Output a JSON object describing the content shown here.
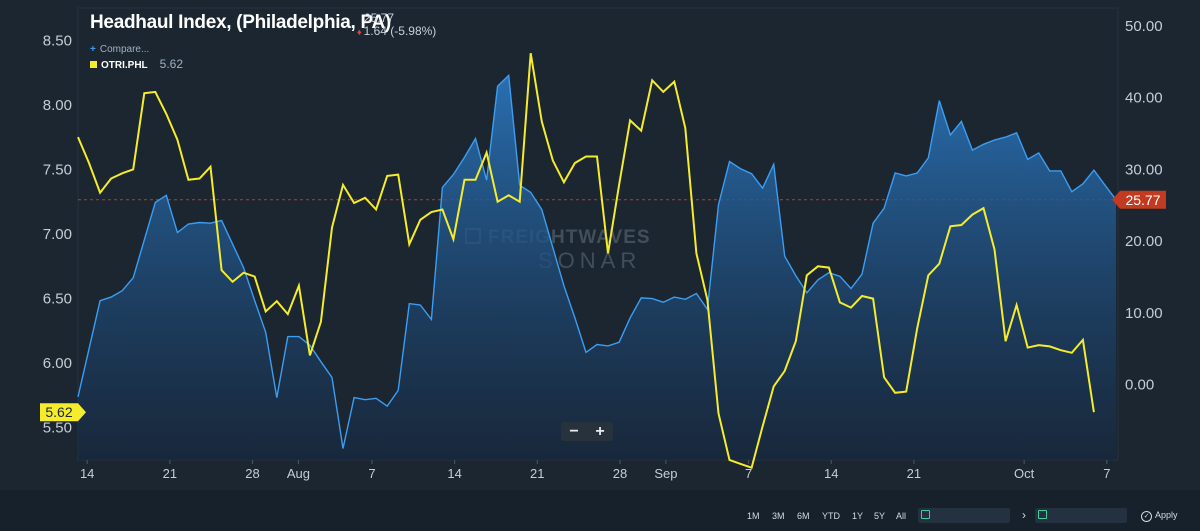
{
  "header": {
    "title": "Headhaul Index, (Philadelphia, PA)",
    "last_value": "25.77",
    "change": "1.64 (-5.98%)",
    "compare_label": "Compare...",
    "legend_series": "OTRI.PHL",
    "legend_value": "5.62"
  },
  "watermark": {
    "line1": "FREIGHTWAVES",
    "line2": "SONAR"
  },
  "zoom": {
    "minus": "−",
    "plus": "+"
  },
  "footer": {
    "ranges": [
      "1M",
      "3M",
      "6M",
      "YTD",
      "1Y",
      "5Y",
      "All"
    ],
    "separator": "›",
    "apply_label": "Apply"
  },
  "colors": {
    "background": "#1b2631",
    "headhaul_line": "#3c9df2",
    "otri_line": "#f5ec2b",
    "last_value_badge": "#c23a1f"
  },
  "chart_data": {
    "type": "line",
    "title": "Headhaul Index, (Philadelphia, PA)",
    "x_tick_labels": [
      "14",
      "21",
      "28",
      "Aug",
      "7",
      "14",
      "21",
      "28",
      "Sep",
      "7",
      "14",
      "21",
      "Oct",
      "7"
    ],
    "y_left": {
      "ticks": [
        "8.50",
        "8.00",
        "7.50",
        "7.00",
        "6.50",
        "6.00",
        "5.50"
      ],
      "range": [
        5.25,
        8.75
      ]
    },
    "y_right": {
      "ticks": [
        "50.00",
        "40.00",
        "30.00",
        "20.00",
        "10.00",
        "0.00"
      ],
      "range": [
        -10.5,
        52.5
      ]
    },
    "grid": false,
    "series": [
      {
        "name": "Headhaul Index, (Philadelphia, PA)",
        "axis": "right",
        "type": "area",
        "last_label": "25.77",
        "points": [
          [
            0,
            -1.7
          ],
          [
            2,
            11.7
          ],
          [
            3,
            12.2
          ],
          [
            4,
            13.1
          ],
          [
            5,
            14.9
          ],
          [
            7,
            25.4
          ],
          [
            8,
            26.4
          ],
          [
            9,
            21.2
          ],
          [
            10,
            22.4
          ],
          [
            11,
            22.6
          ],
          [
            12,
            22.5
          ],
          [
            13,
            22.9
          ],
          [
            15,
            16.3
          ],
          [
            16,
            11.7
          ],
          [
            17,
            7.3
          ],
          [
            18,
            -1.8
          ],
          [
            19,
            6.7
          ],
          [
            20,
            6.7
          ],
          [
            21,
            5.5
          ],
          [
            22,
            3.2
          ],
          [
            23,
            1.0
          ],
          [
            24,
            -8.9
          ],
          [
            25,
            -1.8
          ],
          [
            26,
            -2.1
          ],
          [
            27,
            -1.9
          ],
          [
            28,
            -3.0
          ],
          [
            29,
            -0.8
          ],
          [
            30,
            11.3
          ],
          [
            31,
            11.1
          ],
          [
            32,
            9.1
          ],
          [
            33,
            27.5
          ],
          [
            34,
            29.3
          ],
          [
            35,
            31.7
          ],
          [
            36,
            34.3
          ],
          [
            37,
            28.5
          ],
          [
            38,
            41.6
          ],
          [
            39,
            43.1
          ],
          [
            40,
            27.8
          ],
          [
            41,
            26.8
          ],
          [
            42,
            24.4
          ],
          [
            44,
            13.8
          ],
          [
            45,
            9.3
          ],
          [
            46,
            4.5
          ],
          [
            47,
            5.6
          ],
          [
            48,
            5.4
          ],
          [
            49,
            5.9
          ],
          [
            50,
            9.3
          ],
          [
            51,
            12.1
          ],
          [
            52,
            12.0
          ],
          [
            53,
            11.5
          ],
          [
            54,
            12.2
          ],
          [
            55,
            11.9
          ],
          [
            56,
            12.7
          ],
          [
            57,
            10.5
          ],
          [
            58,
            25.1
          ],
          [
            59,
            31.1
          ],
          [
            60,
            30.1
          ],
          [
            61,
            29.4
          ],
          [
            62,
            27.4
          ],
          [
            63,
            30.7
          ],
          [
            64,
            17.9
          ],
          [
            65,
            15.2
          ],
          [
            66,
            12.8
          ],
          [
            67,
            14.6
          ],
          [
            68,
            15.6
          ],
          [
            69,
            15.1
          ],
          [
            70,
            13.4
          ],
          [
            71,
            15.4
          ],
          [
            72,
            22.5
          ],
          [
            73,
            24.6
          ],
          [
            74,
            29.5
          ],
          [
            75,
            29.1
          ],
          [
            76,
            29.5
          ],
          [
            77,
            31.6
          ],
          [
            78,
            39.6
          ],
          [
            79,
            34.8
          ],
          [
            80,
            36.7
          ],
          [
            81,
            32.7
          ],
          [
            82,
            33.5
          ],
          [
            83,
            34.1
          ],
          [
            84,
            34.5
          ],
          [
            85,
            35.1
          ],
          [
            86,
            31.4
          ],
          [
            87,
            32.3
          ],
          [
            88,
            29.8
          ],
          [
            89,
            29.8
          ],
          [
            90,
            26.9
          ],
          [
            91,
            28.0
          ],
          [
            92,
            29.9
          ],
          [
            93,
            27.8
          ],
          [
            94,
            25.77
          ]
        ]
      },
      {
        "name": "OTRI.PHL",
        "axis": "left",
        "type": "line",
        "last_label": "5.62",
        "points": [
          [
            0,
            7.75
          ],
          [
            1,
            7.55
          ],
          [
            2,
            7.32
          ],
          [
            3,
            7.43
          ],
          [
            4,
            7.47
          ],
          [
            5,
            7.5
          ],
          [
            6,
            8.09
          ],
          [
            7,
            8.1
          ],
          [
            8,
            7.93
          ],
          [
            9,
            7.73
          ],
          [
            10,
            7.42
          ],
          [
            11,
            7.43
          ],
          [
            12,
            7.52
          ],
          [
            13,
            6.72
          ],
          [
            14,
            6.63
          ],
          [
            15,
            6.7
          ],
          [
            16,
            6.67
          ],
          [
            17,
            6.4
          ],
          [
            18,
            6.48
          ],
          [
            19,
            6.38
          ],
          [
            20,
            6.6
          ],
          [
            21,
            6.06
          ],
          [
            22,
            6.32
          ],
          [
            23,
            7.05
          ],
          [
            24,
            7.38
          ],
          [
            25,
            7.24
          ],
          [
            26,
            7.28
          ],
          [
            27,
            7.19
          ],
          [
            28,
            7.45
          ],
          [
            29,
            7.46
          ],
          [
            30,
            6.92
          ],
          [
            31,
            7.11
          ],
          [
            32,
            7.17
          ],
          [
            33,
            7.19
          ],
          [
            34,
            6.96
          ],
          [
            35,
            7.42
          ],
          [
            36,
            7.42
          ],
          [
            37,
            7.63
          ],
          [
            38,
            7.25
          ],
          [
            39,
            7.3
          ],
          [
            40,
            7.25
          ],
          [
            41,
            8.4
          ],
          [
            42,
            7.87
          ],
          [
            43,
            7.57
          ],
          [
            44,
            7.4
          ],
          [
            45,
            7.55
          ],
          [
            46,
            7.6
          ],
          [
            47,
            7.6
          ],
          [
            48,
            6.85
          ],
          [
            49,
            7.38
          ],
          [
            50,
            7.88
          ],
          [
            51,
            7.8
          ],
          [
            52,
            8.19
          ],
          [
            53,
            8.1
          ],
          [
            54,
            8.18
          ],
          [
            55,
            7.82
          ],
          [
            56,
            6.85
          ],
          [
            57,
            6.49
          ],
          [
            58,
            5.61
          ],
          [
            59,
            5.25
          ],
          [
            60,
            5.22
          ],
          [
            61,
            5.19
          ],
          [
            62,
            5.51
          ],
          [
            63,
            5.82
          ],
          [
            64,
            5.94
          ],
          [
            65,
            6.17
          ],
          [
            66,
            6.68
          ],
          [
            67,
            6.75
          ],
          [
            68,
            6.74
          ],
          [
            69,
            6.47
          ],
          [
            70,
            6.43
          ],
          [
            71,
            6.52
          ],
          [
            72,
            6.5
          ],
          [
            73,
            5.89
          ],
          [
            74,
            5.77
          ],
          [
            75,
            5.78
          ],
          [
            76,
            6.27
          ],
          [
            77,
            6.68
          ],
          [
            78,
            6.77
          ],
          [
            79,
            7.06
          ],
          [
            80,
            7.07
          ],
          [
            81,
            7.15
          ],
          [
            82,
            7.2
          ],
          [
            83,
            6.88
          ],
          [
            84,
            6.17
          ],
          [
            85,
            6.45
          ],
          [
            86,
            6.12
          ],
          [
            87,
            6.14
          ],
          [
            88,
            6.13
          ],
          [
            89,
            6.1
          ],
          [
            90,
            6.08
          ],
          [
            91,
            6.18
          ],
          [
            92,
            5.62
          ]
        ]
      }
    ],
    "reference_line": {
      "axis": "right",
      "value": 25.77
    }
  }
}
